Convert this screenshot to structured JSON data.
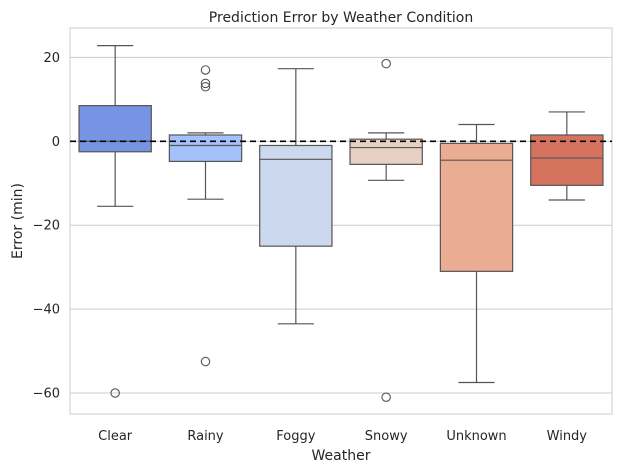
{
  "chart_data": {
    "type": "box",
    "title": "Prediction Error by Weather Condition",
    "xlabel": "Weather",
    "ylabel": "Error (min)",
    "ylim": [
      -65,
      27
    ],
    "yticks": [
      20,
      0,
      -20,
      -40,
      -60
    ],
    "ytick_labels": [
      "20",
      "0",
      "−20",
      "−40",
      "−60"
    ],
    "grid": true,
    "reference_line": {
      "y": 0,
      "style": "dashed",
      "color": "#000000"
    },
    "categories": [
      "Clear",
      "Rainy",
      "Foggy",
      "Snowy",
      "Unknown",
      "Windy"
    ],
    "boxes": [
      {
        "category": "Clear",
        "whisker_low": -15.5,
        "q1": -2.5,
        "median": 0,
        "q3": 8.5,
        "whisker_high": 22.8,
        "outliers": [
          -60
        ],
        "color": "#7693e4"
      },
      {
        "category": "Rainy",
        "whisker_low": -13.8,
        "q1": -4.8,
        "median": -1,
        "q3": 1.5,
        "whisker_high": 2,
        "outliers": [
          17,
          13.8,
          13,
          -52.5
        ],
        "color": "#a5c1fb"
      },
      {
        "category": "Foggy",
        "whisker_low": -43.5,
        "q1": -25,
        "median": -4.3,
        "q3": -1,
        "whisker_high": 17.3,
        "outliers": [],
        "color": "#cbd8ed"
      },
      {
        "category": "Snowy",
        "whisker_low": -9.3,
        "q1": -5.5,
        "median": -1.5,
        "q3": 0.5,
        "whisker_high": 2,
        "outliers": [
          18.5,
          -61
        ],
        "color": "#e8d0c4"
      },
      {
        "category": "Unknown",
        "whisker_low": -57.5,
        "q1": -31,
        "median": -4.5,
        "q3": -0.5,
        "whisker_high": 4,
        "outliers": [],
        "color": "#eaad93"
      },
      {
        "category": "Windy",
        "whisker_low": -14,
        "q1": -10.5,
        "median": -4,
        "q3": 1.5,
        "whisker_high": 7,
        "outliers": [],
        "color": "#d5735f"
      }
    ]
  }
}
